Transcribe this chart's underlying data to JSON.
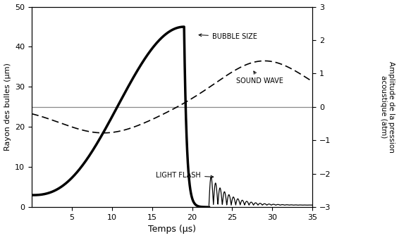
{
  "xlabel": "Temps (µs)",
  "ylabel_left": "Rayon des bulles (µm)",
  "ylabel_right": "Amplitude de la pression\nacoustique (atm)",
  "xlim": [
    0,
    35
  ],
  "ylim_left": [
    0,
    50
  ],
  "ylim_right": [
    -3,
    3
  ],
  "xticks": [
    5,
    10,
    15,
    20,
    25,
    30,
    35
  ],
  "yticks_left": [
    0,
    10,
    20,
    30,
    40,
    50
  ],
  "yticks_right": [
    -3,
    -2,
    -1,
    0,
    1,
    2,
    3
  ],
  "bg_color": "#ffffff"
}
